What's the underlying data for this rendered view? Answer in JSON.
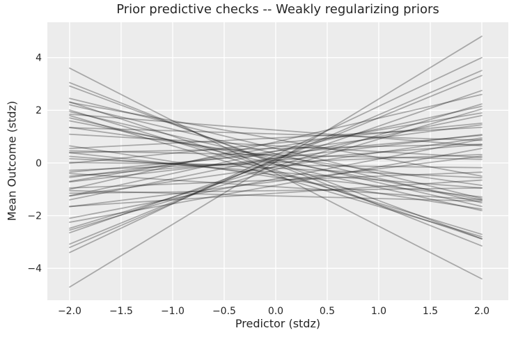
{
  "chart_data": {
    "type": "line",
    "title": "Prior predictive checks -- Weakly regularizing priors",
    "xlabel": "Predictor (stdz)",
    "ylabel": "Mean Outcome (stdz)",
    "xlim": [
      -2.216,
      2.257
    ],
    "ylim": [
      -5.21,
      5.34
    ],
    "x_line_range": [
      -2.0,
      2.0
    ],
    "x_ticks": [
      -2.0,
      -1.5,
      -1.0,
      -0.5,
      0.0,
      0.5,
      1.0,
      1.5,
      2.0
    ],
    "x_tick_labels": [
      "−2.0",
      "−1.5",
      "−1.0",
      "−0.5",
      "0.0",
      "0.5",
      "1.0",
      "1.5",
      "2.0"
    ],
    "y_ticks": [
      -4,
      -2,
      0,
      2,
      4
    ],
    "y_tick_labels": [
      "−4",
      "−2",
      "0",
      "2",
      "4"
    ],
    "grid": true,
    "legend": false,
    "style": {
      "figure_bg": "#ffffff",
      "plot_bg": "#ececec",
      "grid_color": "#ffffff",
      "line_color": "#1a1a1a",
      "line_opacity": 0.32,
      "line_width": 1.8,
      "text_color": "#262626",
      "tick_font_size": 14
    },
    "lines": [
      {
        "intercept": 0.05,
        "slope": 2.38
      },
      {
        "intercept": -0.4,
        "slope": -2.0
      },
      {
        "intercept": 0.3,
        "slope": 1.85
      },
      {
        "intercept": 0.15,
        "slope": 1.68
      },
      {
        "intercept": 0.12,
        "slope": 1.6
      },
      {
        "intercept": -0.05,
        "slope": -1.55
      },
      {
        "intercept": 0.05,
        "slope": 1.35
      },
      {
        "intercept": -0.28,
        "slope": -1.3
      },
      {
        "intercept": -0.5,
        "slope": -1.15
      },
      {
        "intercept": -0.35,
        "slope": -1.18
      },
      {
        "intercept": -0.12,
        "slope": 1.18
      },
      {
        "intercept": -0.25,
        "slope": 1.15
      },
      {
        "intercept": 0.55,
        "slope": -0.95
      },
      {
        "intercept": 0.35,
        "slope": -0.93
      },
      {
        "intercept": 0.15,
        "slope": -0.9
      },
      {
        "intercept": -0.05,
        "slope": -0.88
      },
      {
        "intercept": 0.8,
        "slope": 0.9
      },
      {
        "intercept": 0.45,
        "slope": 0.85
      },
      {
        "intercept": 0.2,
        "slope": 0.8
      },
      {
        "intercept": -0.6,
        "slope": 0.75
      },
      {
        "intercept": 0.1,
        "slope": -0.75
      },
      {
        "intercept": 0.9,
        "slope": -0.7
      },
      {
        "intercept": -0.85,
        "slope": 0.7
      },
      {
        "intercept": 0.6,
        "slope": 0.65
      },
      {
        "intercept": -0.55,
        "slope": -0.6
      },
      {
        "intercept": 0.75,
        "slope": 0.38
      },
      {
        "intercept": 0.45,
        "slope": 0.5
      },
      {
        "intercept": -0.7,
        "slope": 0.48
      },
      {
        "intercept": 0.25,
        "slope": -0.55
      },
      {
        "intercept": -0.15,
        "slope": 0.55
      },
      {
        "intercept": 1.1,
        "slope": -0.12
      },
      {
        "intercept": 0.95,
        "slope": 0.2
      },
      {
        "intercept": 0.35,
        "slope": 0.35
      },
      {
        "intercept": -1.15,
        "slope": 0.25
      },
      {
        "intercept": -0.9,
        "slope": -0.25
      },
      {
        "intercept": 0.55,
        "slope": 0.08
      },
      {
        "intercept": 0.1,
        "slope": 0.3
      },
      {
        "intercept": -0.35,
        "slope": -0.3
      },
      {
        "intercept": 0.65,
        "slope": -0.22
      },
      {
        "intercept": -0.2,
        "slope": -0.18
      },
      {
        "intercept": 0.02,
        "slope": 0.15
      },
      {
        "intercept": -0.65,
        "slope": 0.15
      },
      {
        "intercept": 0.3,
        "slope": -0.08
      },
      {
        "intercept": -0.08,
        "slope": -0.05
      },
      {
        "intercept": -1.05,
        "slope": 0.05
      },
      {
        "intercept": 0.18,
        "slope": 0.45
      },
      {
        "intercept": -0.45,
        "slope": -0.42
      },
      {
        "intercept": 1.25,
        "slope": -0.3
      },
      {
        "intercept": -1.25,
        "slope": -0.1
      },
      {
        "intercept": 0.02,
        "slope": -1.45
      }
    ]
  }
}
